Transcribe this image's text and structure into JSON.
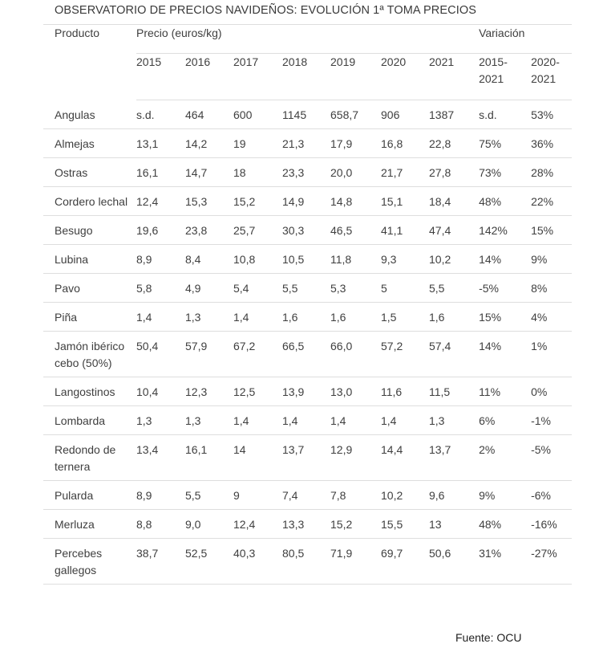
{
  "title": "OBSERVATORIO DE PRECIOS NAVIDEÑOS: EVOLUCIÓN 1ª TOMA PRECIOS",
  "headers": {
    "producto": "Producto",
    "precio": "Precio (euros/kg)",
    "variacion": "Variación",
    "years": [
      "2015",
      "2016",
      "2017",
      "2018",
      "2019",
      "2020",
      "2021"
    ],
    "var_cols": [
      "2015-\n2021",
      "2020-\n2021"
    ]
  },
  "rows": [
    {
      "producto": "Angulas",
      "values": [
        "s.d.",
        "464",
        "600",
        "1145",
        "658,7",
        "906",
        "1387"
      ],
      "var": [
        "s.d.",
        "53%"
      ]
    },
    {
      "producto": "Almejas",
      "values": [
        "13,1",
        "14,2",
        "19",
        "21,3",
        "17,9",
        "16,8",
        "22,8"
      ],
      "var": [
        "75%",
        "36%"
      ]
    },
    {
      "producto": "Ostras",
      "values": [
        "16,1",
        "14,7",
        "18",
        "23,3",
        "20,0",
        "21,7",
        "27,8"
      ],
      "var": [
        "73%",
        "28%"
      ]
    },
    {
      "producto": "Cordero lechal",
      "values": [
        "12,4",
        "15,3",
        "15,2",
        "14,9",
        "14,8",
        "15,1",
        "18,4"
      ],
      "var": [
        "48%",
        "22%"
      ]
    },
    {
      "producto": "Besugo",
      "values": [
        "19,6",
        "23,8",
        "25,7",
        "30,3",
        "46,5",
        "41,1",
        "47,4"
      ],
      "var": [
        "142%",
        "15%"
      ]
    },
    {
      "producto": "Lubina",
      "values": [
        "8,9",
        "8,4",
        "10,8",
        "10,5",
        "11,8",
        "9,3",
        "10,2"
      ],
      "var": [
        "14%",
        "9%"
      ]
    },
    {
      "producto": "Pavo",
      "values": [
        "5,8",
        "4,9",
        "5,4",
        "5,5",
        "5,3",
        "5",
        "5,5"
      ],
      "var": [
        "-5%",
        "8%"
      ]
    },
    {
      "producto": "Piña",
      "values": [
        "1,4",
        "1,3",
        "1,4",
        "1,6",
        "1,6",
        "1,5",
        "1,6"
      ],
      "var": [
        "15%",
        "4%"
      ]
    },
    {
      "producto": "Jamón ibérico cebo (50%)",
      "values": [
        "50,4",
        "57,9",
        "67,2",
        "66,5",
        "66,0",
        "57,2",
        "57,4"
      ],
      "var": [
        "14%",
        "1%"
      ]
    },
    {
      "producto": "Langostinos",
      "values": [
        "10,4",
        "12,3",
        "12,5",
        "13,9",
        "13,0",
        "11,6",
        "11,5"
      ],
      "var": [
        "11%",
        "0%"
      ]
    },
    {
      "producto": "Lombarda",
      "values": [
        "1,3",
        "1,3",
        "1,4",
        "1,4",
        "1,4",
        "1,4",
        "1,3"
      ],
      "var": [
        "6%",
        "-1%"
      ]
    },
    {
      "producto": "Redondo de ternera",
      "values": [
        "13,4",
        "16,1",
        "14",
        "13,7",
        "12,9",
        "14,4",
        "13,7"
      ],
      "var": [
        "2%",
        "-5%"
      ]
    },
    {
      "producto": "Pularda",
      "values": [
        "8,9",
        "5,5",
        "9",
        "7,4",
        "7,8",
        "10,2",
        "9,6"
      ],
      "var": [
        "9%",
        "-6%"
      ]
    },
    {
      "producto": "Merluza",
      "values": [
        "8,8",
        "9,0",
        "12,4",
        "13,3",
        "15,2",
        "15,5",
        "13"
      ],
      "var": [
        "48%",
        "-16%"
      ]
    },
    {
      "producto": "Percebes gallegos",
      "values": [
        "38,7",
        "52,5",
        "40,3",
        "80,5",
        "71,9",
        "69,7",
        "50,6"
      ],
      "var": [
        "31%",
        "-27%"
      ]
    }
  ],
  "source": "Fuente: OCU"
}
